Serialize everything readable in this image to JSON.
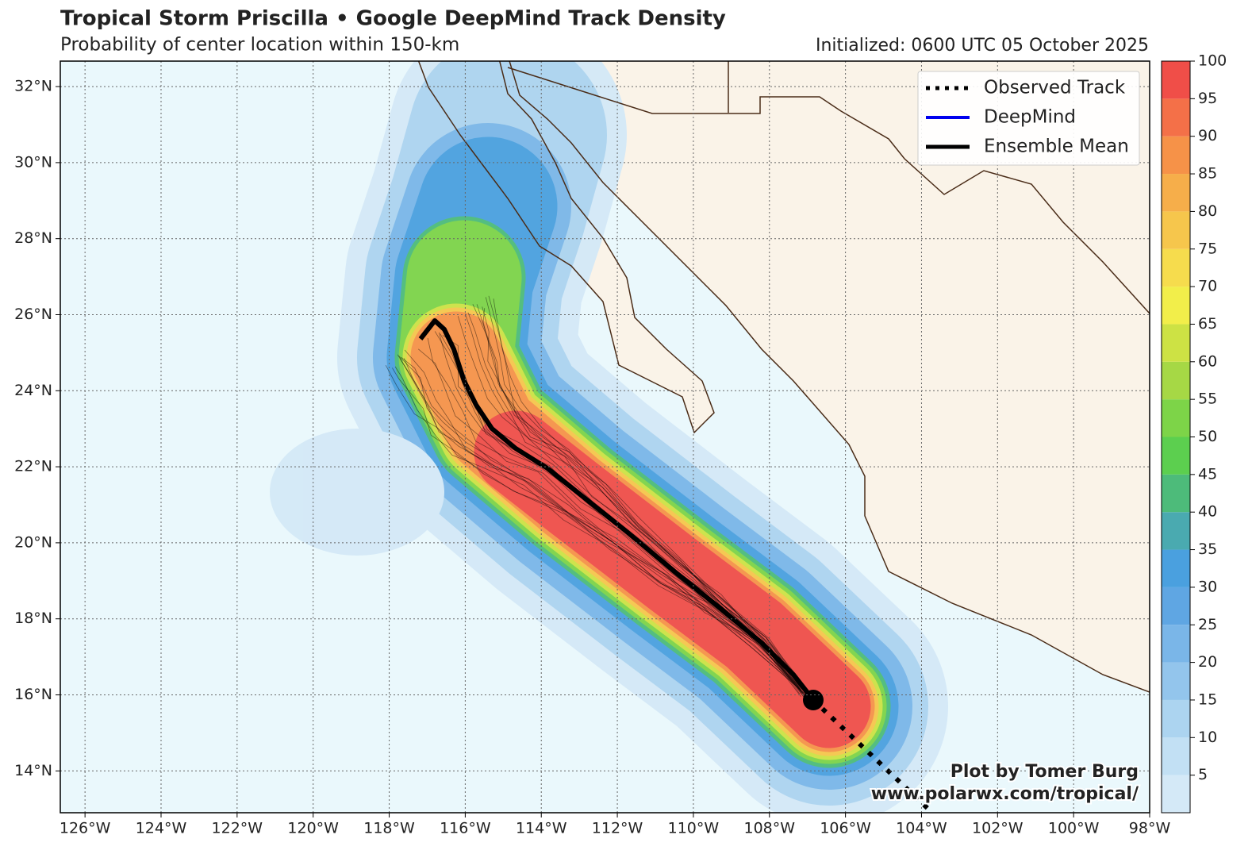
{
  "title": "Tropical Storm Priscilla • Google DeepMind Track Density",
  "subtitle": "Probability of center location within 150-km",
  "initialized": "Initialized: 0600 UTC 05 October 2025",
  "map": {
    "lon_range": [
      -126.65,
      -98
    ],
    "lat_range": [
      12.9,
      32.67
    ],
    "lon_ticks": [
      {
        "value": -126,
        "label": "126°W"
      },
      {
        "value": -124,
        "label": "124°W"
      },
      {
        "value": -122,
        "label": "122°W"
      },
      {
        "value": -120,
        "label": "120°W"
      },
      {
        "value": -118,
        "label": "118°W"
      },
      {
        "value": -116,
        "label": "116°W"
      },
      {
        "value": -114,
        "label": "114°W"
      },
      {
        "value": -112,
        "label": "112°W"
      },
      {
        "value": -110,
        "label": "110°W"
      },
      {
        "value": -108,
        "label": "108°W"
      },
      {
        "value": -106,
        "label": "106°W"
      },
      {
        "value": -104,
        "label": "104°W"
      },
      {
        "value": -102,
        "label": "102°W"
      },
      {
        "value": -100,
        "label": "100°W"
      },
      {
        "value": -98,
        "label": "98°W"
      }
    ],
    "lat_ticks": [
      {
        "value": 14,
        "label": "14°N"
      },
      {
        "value": 16,
        "label": "16°N"
      },
      {
        "value": 18,
        "label": "18°N"
      },
      {
        "value": 20,
        "label": "20°N"
      },
      {
        "value": 22,
        "label": "22°N"
      },
      {
        "value": 24,
        "label": "24°N"
      },
      {
        "value": 26,
        "label": "26°N"
      },
      {
        "value": 28,
        "label": "28°N"
      },
      {
        "value": 30,
        "label": "30°N"
      },
      {
        "value": 32,
        "label": "32°N"
      }
    ]
  },
  "legend": [
    "Observed Track",
    "DeepMind",
    "Ensemble Mean"
  ],
  "colorbar": {
    "range": [
      0,
      100
    ],
    "ticks": [
      5,
      10,
      15,
      20,
      25,
      30,
      35,
      40,
      45,
      50,
      55,
      60,
      65,
      70,
      75,
      80,
      85,
      90,
      95,
      100
    ],
    "colors": [
      "#d4e9f7",
      "#c2e0f4",
      "#acd4f0",
      "#93c5ec",
      "#7ab6e8",
      "#5fa6e3",
      "#4aa0df",
      "#4aaab0",
      "#4dbb7a",
      "#5ccf4f",
      "#7dd448",
      "#a6d845",
      "#cde244",
      "#f2ee4a",
      "#f6dc4d",
      "#f6c64c",
      "#f6ae4a",
      "#f69248",
      "#f47048",
      "#f04e48"
    ]
  },
  "credit": [
    "Plot by Tomer Burg",
    "www.polarwx.com/tropical/"
  ]
}
